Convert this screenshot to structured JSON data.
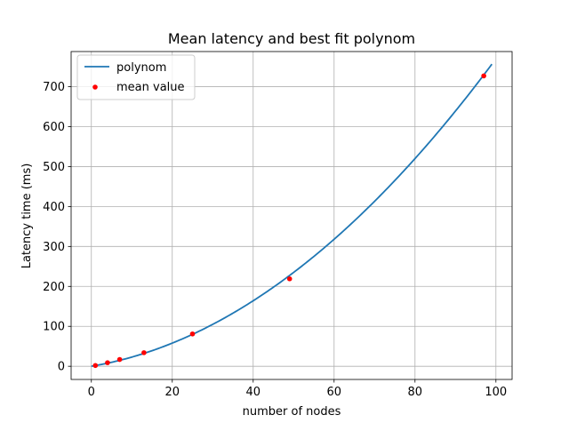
{
  "chart_data": {
    "type": "line",
    "title": "Mean latency and best fit polynom",
    "xlabel": "number of nodes",
    "ylabel": "Latency time (ms)",
    "xlim": [
      -5,
      104
    ],
    "ylim": [
      -33,
      788
    ],
    "xticks": [
      0,
      20,
      40,
      60,
      80,
      100
    ],
    "yticks": [
      0,
      100,
      200,
      300,
      400,
      500,
      600,
      700
    ],
    "grid": true,
    "legend_position": "top-left",
    "series": [
      {
        "name": "polynom",
        "kind": "line",
        "color": "#1f77b4",
        "x_range": [
          0,
          99
        ],
        "polynomial": [
          0.06,
          1.7,
          0
        ]
      },
      {
        "name": "mean value",
        "kind": "scatter",
        "color": "#ff0000",
        "x": [
          1,
          4,
          7,
          13,
          25,
          49,
          97
        ],
        "y": [
          2,
          9,
          17,
          34,
          81,
          219,
          727
        ]
      }
    ]
  }
}
